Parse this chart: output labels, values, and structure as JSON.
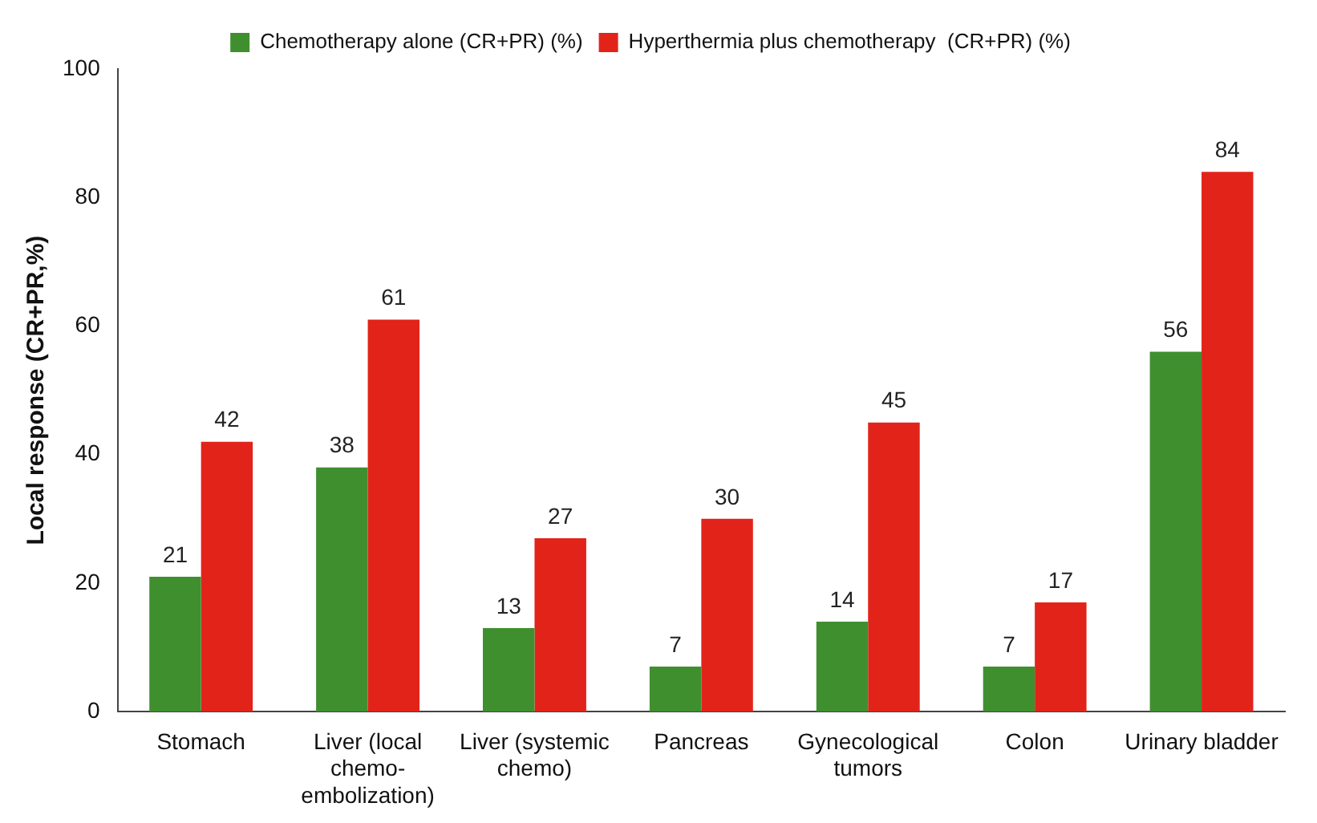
{
  "chart_data": {
    "type": "bar",
    "ylabel": "Local response (CR+PR,%)",
    "categories": [
      "Stomach",
      "Liver (local chemo-embolization)",
      "Liver (systemic chemo)",
      "Pancreas",
      "Gynecological tumors",
      "Colon",
      "Urinary bladder"
    ],
    "series": [
      {
        "name": "Chemotherapy alone (CR+PR) (%)",
        "color": "#3f8f2f",
        "values": [
          21,
          38,
          13,
          7,
          14,
          7,
          56
        ]
      },
      {
        "name": "Hyperthermia plus chemotherapy  (CR+PR) (%)",
        "color": "#e2231a",
        "values": [
          42,
          61,
          27,
          30,
          45,
          17,
          84
        ]
      }
    ],
    "ylim": [
      0,
      100
    ],
    "yticks": [
      0,
      20,
      40,
      60,
      80,
      100
    ],
    "grid": false,
    "legend": "top",
    "data_labels": true
  }
}
